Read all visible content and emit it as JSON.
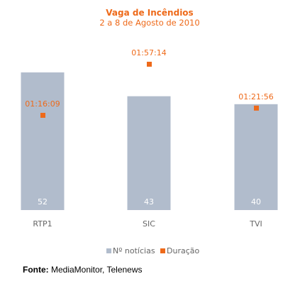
{
  "colors": {
    "bar": "#b1bccc",
    "marker": "#ee6a1a",
    "title": "#ee6a1a",
    "bar_label": "#ffffff"
  },
  "chart_data": {
    "type": "bar",
    "title": "Vaga de Incêndios",
    "subtitle": "2 a 8 de Agosto de 2010",
    "categories": [
      "RTP1",
      "SIC",
      "TVI"
    ],
    "series": [
      {
        "name": "Nº notícias",
        "type": "bar",
        "values": [
          52,
          43,
          40
        ],
        "value_labels": [
          "52",
          "43",
          "40"
        ]
      },
      {
        "name": "Duração",
        "type": "scatter",
        "values": [
          "01:16:09",
          "01:57:14",
          "01:21:56"
        ]
      }
    ],
    "legend_position": "bottom",
    "grid": false
  },
  "source": {
    "label": "Fonte:",
    "text": " MediaMonitor, Telenews"
  }
}
